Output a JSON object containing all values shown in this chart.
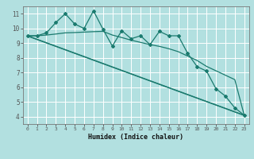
{
  "bg_color": "#b2e0e0",
  "grid_color": "#ffffff",
  "line_color": "#1a7a6e",
  "xlabel": "Humidex (Indice chaleur)",
  "xlim": [
    -0.5,
    23.5
  ],
  "ylim": [
    3.5,
    11.5
  ],
  "yticks": [
    4,
    5,
    6,
    7,
    8,
    9,
    10,
    11
  ],
  "xticks": [
    0,
    1,
    2,
    3,
    4,
    5,
    6,
    7,
    8,
    9,
    10,
    11,
    12,
    13,
    14,
    15,
    16,
    17,
    18,
    19,
    20,
    21,
    22,
    23
  ],
  "series1_x": [
    0,
    1,
    2,
    3,
    4,
    5,
    6,
    7,
    8,
    9,
    10,
    11,
    12,
    13,
    14,
    15,
    16,
    17,
    18,
    19,
    20,
    21,
    22,
    23
  ],
  "series1_y": [
    9.5,
    9.5,
    9.7,
    10.4,
    11.0,
    10.3,
    10.0,
    11.2,
    9.95,
    8.8,
    9.85,
    9.3,
    9.5,
    8.9,
    9.8,
    9.5,
    9.5,
    8.3,
    7.4,
    7.1,
    5.9,
    5.4,
    4.6,
    4.1
  ],
  "series2_x": [
    0,
    1,
    2,
    3,
    4,
    5,
    6,
    7,
    8,
    9,
    10,
    11,
    12,
    13,
    14,
    15,
    16,
    17,
    18,
    19,
    20,
    21,
    22,
    23
  ],
  "series2_y": [
    9.5,
    9.5,
    9.55,
    9.62,
    9.7,
    9.72,
    9.75,
    9.78,
    9.8,
    9.55,
    9.38,
    9.2,
    9.05,
    8.9,
    8.78,
    8.62,
    8.42,
    8.12,
    7.82,
    7.42,
    7.12,
    6.82,
    6.52,
    4.1
  ],
  "series3_x": [
    0,
    23
  ],
  "series3_y": [
    9.5,
    4.1
  ],
  "series4_x": [
    0,
    23
  ],
  "series4_y": [
    9.48,
    4.08
  ]
}
